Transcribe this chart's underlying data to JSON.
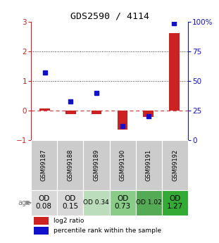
{
  "title": "GDS2590 / 4114",
  "samples": [
    "GSM99187",
    "GSM99188",
    "GSM99189",
    "GSM99190",
    "GSM99191",
    "GSM99192"
  ],
  "log2_ratio": [
    0.07,
    -0.13,
    -0.13,
    -0.65,
    -0.22,
    2.62
  ],
  "percentile_rank_pct": [
    57,
    33,
    40,
    12,
    20,
    99
  ],
  "ylim_left": [
    -1,
    3
  ],
  "ylim_right": [
    0,
    100
  ],
  "yticks_left": [
    -1,
    0,
    1,
    2,
    3
  ],
  "yticks_right": [
    0,
    25,
    50,
    75,
    100
  ],
  "ytick_labels_right": [
    "0",
    "25",
    "50",
    "75",
    "100%"
  ],
  "bar_color_red": "#cc2222",
  "bar_color_blue": "#1111cc",
  "hline_zero_color": "#cc4444",
  "hline_dotted_color": "#333333",
  "age_cells": [
    {
      "text": "OD\n0.08",
      "bg": "#d8d8d8",
      "fontsize": 7.5,
      "large": true
    },
    {
      "text": "OD\n0.15",
      "bg": "#d8d8d8",
      "fontsize": 7.5,
      "large": true
    },
    {
      "text": "OD 0.34",
      "bg": "#bbddbb",
      "fontsize": 6.5,
      "large": false
    },
    {
      "text": "OD\n0.73",
      "bg": "#88cc88",
      "fontsize": 7.5,
      "large": true
    },
    {
      "text": "OD 1.02",
      "bg": "#55aa55",
      "fontsize": 6.5,
      "large": false
    },
    {
      "text": "OD\n1.27",
      "bg": "#33aa33",
      "fontsize": 7.5,
      "large": true
    }
  ],
  "legend_red_label": "log2 ratio",
  "legend_blue_label": "percentile rank within the sample",
  "bar_width": 0.4,
  "gsm_bg_color": "#cccccc",
  "age_label": "age",
  "arrow_color": "#888888"
}
